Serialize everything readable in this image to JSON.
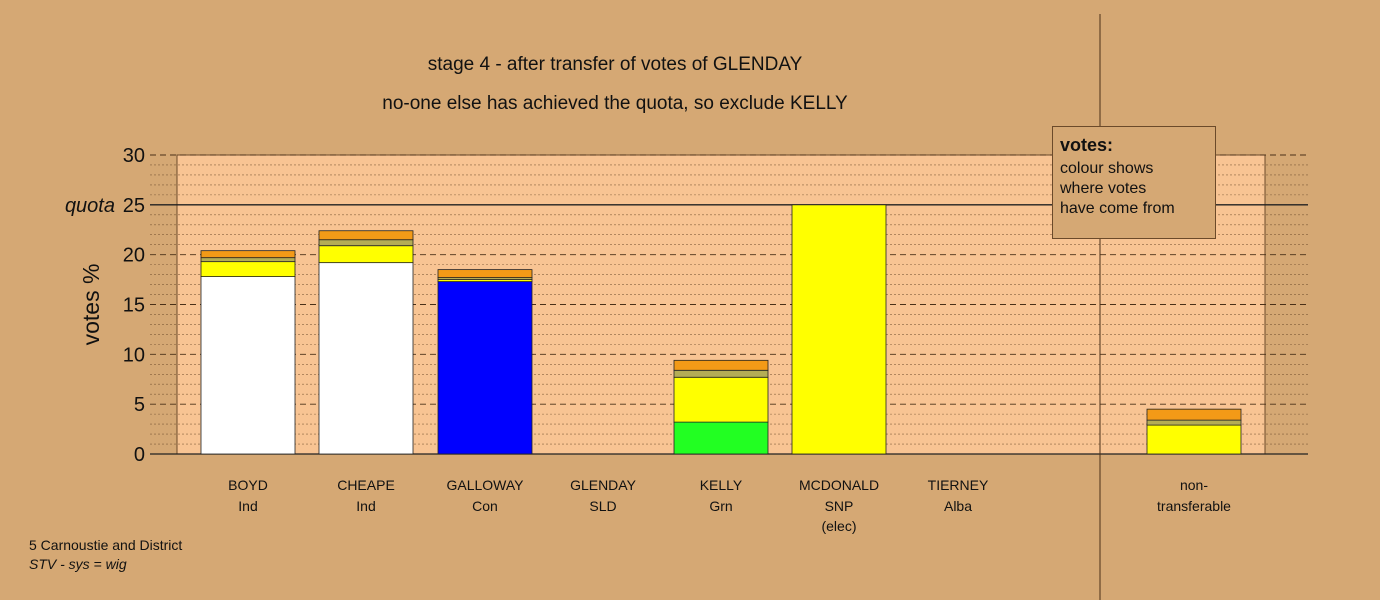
{
  "titles": {
    "line1": "stage 4 - after transfer of votes of GLENDAY",
    "line2": "no-one else has achieved the quota, so exclude KELLY"
  },
  "legend": {
    "title": "votes:",
    "lines": [
      "colour shows",
      "where votes",
      "have come from"
    ]
  },
  "footer": {
    "line1": "5 Carnoustie and District",
    "line2": "STV - sys = wig"
  },
  "colors": {
    "background": "#d5a874",
    "plot_area": "#f8c493",
    "Ind": "#ffffff",
    "Con": "#0000ff",
    "Grn": "#22ff22",
    "SNP": "#ffff00",
    "SLD": "#ffa500",
    "Alba": "#888844",
    "transfer_orange": "#f39a17",
    "transfer_olive": "#b4ad55"
  },
  "chart_data": {
    "type": "bar",
    "ylabel": "votes %",
    "ylim": [
      0,
      30
    ],
    "yticks": [
      0,
      5,
      10,
      15,
      20,
      25,
      30
    ],
    "quota": 25,
    "quota_label": "quota",
    "grid": true,
    "candidates": [
      {
        "name": "BOYD",
        "party": "Ind",
        "note": "",
        "segments": [
          {
            "from": "Ind",
            "value": 17.8
          },
          {
            "from": "SNP",
            "value": 1.5
          },
          {
            "from": "Alba",
            "value": 0.4
          },
          {
            "from": "SLD",
            "value": 0.7
          }
        ]
      },
      {
        "name": "CHEAPE",
        "party": "Ind",
        "note": "",
        "segments": [
          {
            "from": "Ind",
            "value": 19.2
          },
          {
            "from": "SNP",
            "value": 1.7
          },
          {
            "from": "Alba",
            "value": 0.6
          },
          {
            "from": "SLD",
            "value": 0.9
          }
        ]
      },
      {
        "name": "GALLOWAY",
        "party": "Con",
        "note": "",
        "segments": [
          {
            "from": "Con",
            "value": 17.3
          },
          {
            "from": "SNP",
            "value": 0.2
          },
          {
            "from": "Alba",
            "value": 0.2
          },
          {
            "from": "SLD",
            "value": 0.8
          }
        ]
      },
      {
        "name": "GLENDAY",
        "party": "SLD",
        "note": "",
        "segments": []
      },
      {
        "name": "KELLY",
        "party": "Grn",
        "note": "",
        "segments": [
          {
            "from": "Grn",
            "value": 3.2
          },
          {
            "from": "SNP",
            "value": 4.5
          },
          {
            "from": "Alba",
            "value": 0.7
          },
          {
            "from": "SLD",
            "value": 1.0
          }
        ]
      },
      {
        "name": "MCDONALD",
        "party": "SNP",
        "note": "(elec)",
        "segments": [
          {
            "from": "SNP",
            "value": 25.0
          }
        ]
      },
      {
        "name": "TIERNEY",
        "party": "Alba",
        "note": "",
        "segments": []
      }
    ],
    "non_transferable": {
      "label_line1": "non-",
      "label_line2": "transferable",
      "segments": [
        {
          "from": "SNP",
          "value": 2.9
        },
        {
          "from": "Alba",
          "value": 0.5
        },
        {
          "from": "SLD",
          "value": 1.1
        }
      ]
    }
  }
}
